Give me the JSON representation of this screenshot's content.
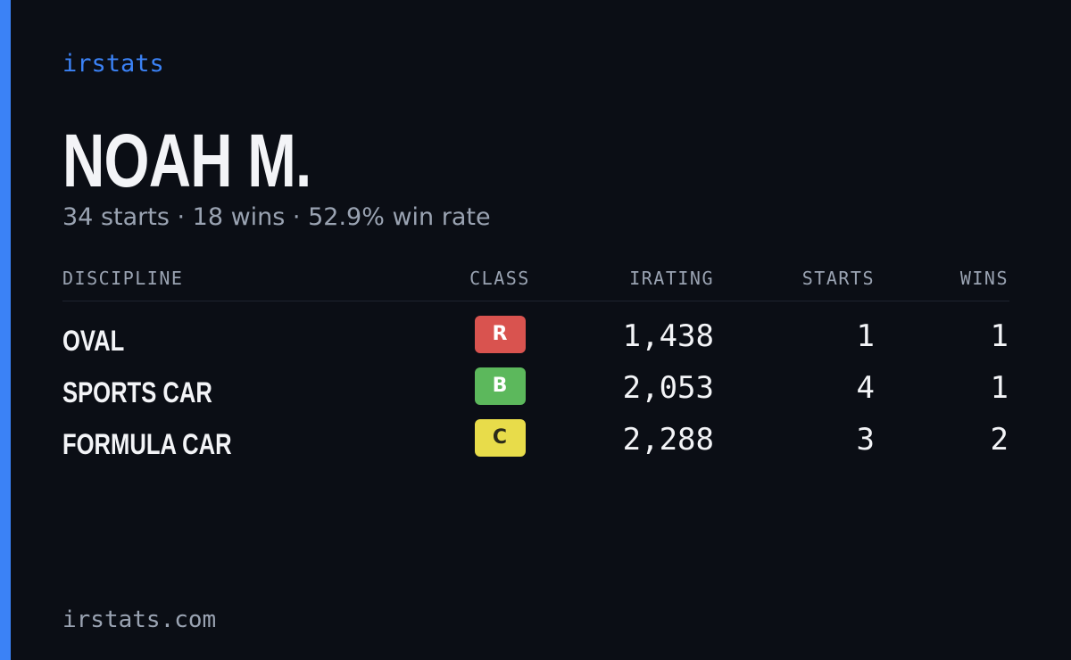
{
  "brand": "irstats",
  "name": "NOAH M.",
  "summary": "34 starts · 18 wins · 52.9% win rate",
  "table": {
    "headers": [
      "DISCIPLINE",
      "CLASS",
      "IRATING",
      "STARTS",
      "WINS"
    ],
    "rows": [
      [
        "OVAL",
        "R",
        "1,438",
        "1",
        "1"
      ],
      [
        "SPORTS CAR",
        "B",
        "2,053",
        "4",
        "1"
      ],
      [
        "FORMULA CAR",
        "C",
        "2,288",
        "3",
        "2"
      ]
    ],
    "badge_colors": [
      "#d9534f",
      "#5cb85c",
      "#e8dc4a"
    ]
  },
  "footer": "irstats.com"
}
